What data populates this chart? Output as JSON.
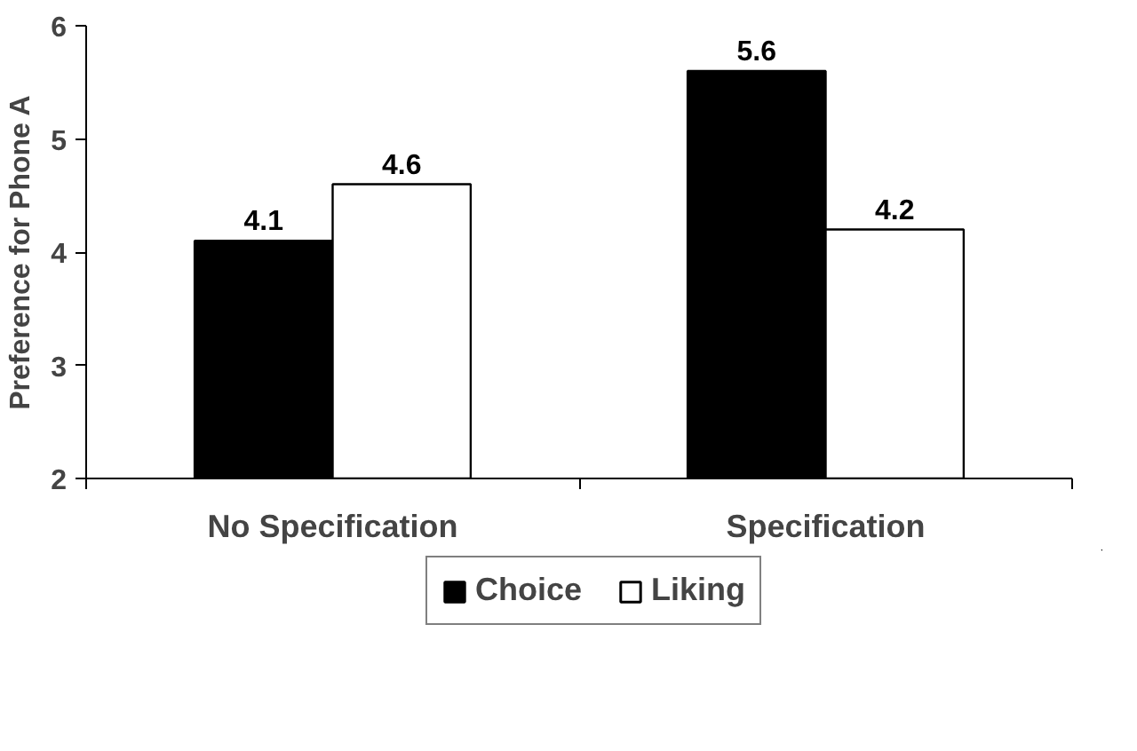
{
  "chart_data": {
    "type": "bar",
    "ylabel": "Preference for Phone A",
    "categories": [
      "No Specification",
      "Specification"
    ],
    "series": [
      {
        "name": "Choice",
        "color": "#000000",
        "values": [
          4.1,
          5.6
        ]
      },
      {
        "name": "Liking",
        "color": "#ffffff",
        "values": [
          4.6,
          4.2
        ]
      }
    ],
    "ylim": [
      2,
      6
    ],
    "yticks": [
      2,
      3,
      4,
      5,
      6
    ],
    "grid": false,
    "legend": "bottom",
    "data_labels": true
  }
}
